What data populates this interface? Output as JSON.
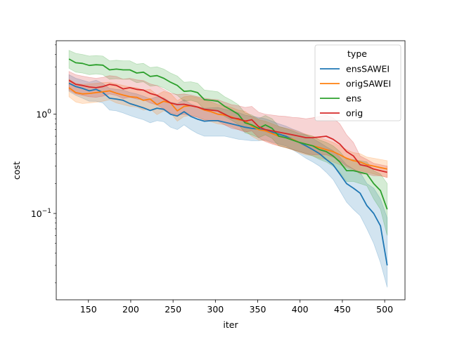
{
  "chart_data": {
    "type": "line",
    "xlabel": "iter",
    "ylabel": "cost",
    "xlim": [
      112,
      524
    ],
    "ylim": [
      0.0135,
      5.5
    ],
    "yscale": "log",
    "grid": false,
    "x_ticks": [
      150,
      200,
      250,
      300,
      350,
      400,
      450,
      500
    ],
    "y_ticks": [
      {
        "value": 0.1,
        "base": "10",
        "exp": "−1"
      },
      {
        "value": 1,
        "base": "10",
        "exp": "0"
      }
    ],
    "legend": {
      "title": "type",
      "placement": "top-right"
    },
    "x": [
      127,
      135,
      143,
      151,
      159,
      167,
      175,
      183,
      191,
      199,
      207,
      215,
      223,
      231,
      239,
      247,
      255,
      263,
      271,
      279,
      287,
      295,
      303,
      311,
      319,
      327,
      335,
      343,
      351,
      359,
      367,
      375,
      383,
      391,
      399,
      407,
      415,
      423,
      431,
      439,
      447,
      455,
      463,
      471,
      479,
      487,
      495,
      503
    ],
    "series": [
      {
        "name": "ensSAWEI",
        "color": "#1f77b4",
        "values": [
          2.05,
          1.9,
          1.82,
          1.72,
          1.78,
          1.66,
          1.45,
          1.42,
          1.38,
          1.28,
          1.22,
          1.16,
          1.09,
          1.15,
          1.12,
          1.0,
          0.96,
          1.06,
          0.95,
          0.89,
          0.85,
          0.86,
          0.86,
          0.83,
          0.8,
          0.77,
          0.74,
          0.72,
          0.71,
          0.7,
          0.66,
          0.63,
          0.6,
          0.56,
          0.52,
          0.48,
          0.44,
          0.4,
          0.35,
          0.31,
          0.25,
          0.2,
          0.18,
          0.16,
          0.12,
          0.1,
          0.075,
          0.03
        ],
        "lower": [
          1.7,
          1.55,
          1.45,
          1.35,
          1.35,
          1.3,
          1.1,
          1.08,
          1.03,
          0.97,
          0.92,
          0.88,
          0.82,
          0.86,
          0.84,
          0.74,
          0.7,
          0.78,
          0.7,
          0.64,
          0.6,
          0.6,
          0.6,
          0.6,
          0.58,
          0.56,
          0.55,
          0.54,
          0.54,
          0.55,
          0.52,
          0.5,
          0.48,
          0.44,
          0.4,
          0.36,
          0.33,
          0.3,
          0.26,
          0.22,
          0.17,
          0.13,
          0.11,
          0.095,
          0.07,
          0.05,
          0.032,
          0.018
        ],
        "upper": [
          2.5,
          2.3,
          2.2,
          2.1,
          2.2,
          2.05,
          1.82,
          1.78,
          1.75,
          1.66,
          1.6,
          1.52,
          1.43,
          1.5,
          1.46,
          1.32,
          1.28,
          1.4,
          1.27,
          1.2,
          1.15,
          1.16,
          1.17,
          1.12,
          1.08,
          1.04,
          0.98,
          0.95,
          0.93,
          0.9,
          0.85,
          0.8,
          0.76,
          0.71,
          0.67,
          0.62,
          0.57,
          0.52,
          0.47,
          0.43,
          0.37,
          0.31,
          0.28,
          0.26,
          0.2,
          0.18,
          0.14,
          0.09
        ]
      },
      {
        "name": "origSAWEI",
        "color": "#ff7f0e",
        "values": [
          1.85,
          1.65,
          1.6,
          1.62,
          1.65,
          1.68,
          1.72,
          1.63,
          1.56,
          1.5,
          1.48,
          1.38,
          1.42,
          1.25,
          1.35,
          1.3,
          1.08,
          1.2,
          1.22,
          1.18,
          1.1,
          1.06,
          1.0,
          0.98,
          0.94,
          0.88,
          0.86,
          0.76,
          0.7,
          0.68,
          0.64,
          0.6,
          0.58,
          0.56,
          0.52,
          0.5,
          0.48,
          0.46,
          0.44,
          0.42,
          0.39,
          0.36,
          0.34,
          0.33,
          0.31,
          0.3,
          0.29,
          0.28
        ],
        "lower": [
          1.5,
          1.33,
          1.28,
          1.3,
          1.32,
          1.35,
          1.4,
          1.3,
          1.25,
          1.2,
          1.18,
          1.1,
          1.13,
          0.99,
          1.08,
          1.03,
          0.85,
          0.95,
          0.97,
          0.93,
          0.87,
          0.84,
          0.8,
          0.78,
          0.75,
          0.7,
          0.68,
          0.6,
          0.55,
          0.54,
          0.51,
          0.48,
          0.46,
          0.44,
          0.41,
          0.39,
          0.38,
          0.36,
          0.35,
          0.33,
          0.31,
          0.29,
          0.27,
          0.27,
          0.26,
          0.25,
          0.24,
          0.23
        ],
        "upper": [
          2.25,
          2.05,
          2.0,
          2.02,
          2.05,
          2.08,
          2.1,
          2.02,
          1.95,
          1.88,
          1.85,
          1.75,
          1.78,
          1.57,
          1.7,
          1.62,
          1.37,
          1.5,
          1.52,
          1.47,
          1.38,
          1.33,
          1.25,
          1.22,
          1.17,
          1.1,
          1.07,
          0.95,
          0.88,
          0.85,
          0.8,
          0.75,
          0.72,
          0.7,
          0.66,
          0.63,
          0.6,
          0.58,
          0.55,
          0.52,
          0.48,
          0.44,
          0.41,
          0.4,
          0.37,
          0.36,
          0.35,
          0.34
        ]
      },
      {
        "name": "ens",
        "color": "#2ca02c",
        "values": [
          3.6,
          3.3,
          3.25,
          3.1,
          3.15,
          3.12,
          2.8,
          2.85,
          2.8,
          2.8,
          2.6,
          2.65,
          2.4,
          2.45,
          2.3,
          2.1,
          1.95,
          1.7,
          1.72,
          1.65,
          1.4,
          1.38,
          1.35,
          1.2,
          1.1,
          1.0,
          0.82,
          0.78,
          0.72,
          0.78,
          0.72,
          0.6,
          0.58,
          0.55,
          0.52,
          0.5,
          0.48,
          0.44,
          0.42,
          0.38,
          0.33,
          0.27,
          0.27,
          0.26,
          0.25,
          0.2,
          0.17,
          0.11
        ],
        "lower": [
          2.9,
          2.65,
          2.6,
          2.5,
          2.55,
          2.5,
          2.25,
          2.28,
          2.25,
          2.25,
          2.08,
          2.12,
          1.92,
          1.95,
          1.84,
          1.68,
          1.55,
          1.35,
          1.38,
          1.32,
          1.12,
          1.1,
          1.07,
          0.95,
          0.87,
          0.79,
          0.65,
          0.62,
          0.58,
          0.62,
          0.57,
          0.48,
          0.46,
          0.44,
          0.42,
          0.4,
          0.38,
          0.35,
          0.33,
          0.3,
          0.26,
          0.21,
          0.21,
          0.2,
          0.19,
          0.14,
          0.11,
          0.06
        ],
        "upper": [
          4.4,
          4.1,
          4.0,
          3.85,
          3.9,
          3.85,
          3.45,
          3.5,
          3.45,
          3.45,
          3.2,
          3.25,
          2.95,
          3.0,
          2.85,
          2.6,
          2.42,
          2.1,
          2.12,
          2.05,
          1.75,
          1.72,
          1.68,
          1.5,
          1.38,
          1.25,
          1.03,
          0.98,
          0.9,
          0.97,
          0.9,
          0.75,
          0.72,
          0.68,
          0.64,
          0.62,
          0.6,
          0.55,
          0.52,
          0.48,
          0.42,
          0.35,
          0.35,
          0.34,
          0.33,
          0.27,
          0.25,
          0.2
        ]
      },
      {
        "name": "orig",
        "color": "#d62728",
        "values": [
          2.2,
          2.0,
          1.95,
          1.88,
          1.85,
          1.9,
          2.0,
          1.95,
          1.8,
          1.85,
          1.78,
          1.75,
          1.62,
          1.55,
          1.42,
          1.3,
          1.25,
          1.26,
          1.22,
          1.18,
          1.12,
          1.1,
          1.08,
          1.0,
          0.92,
          0.9,
          0.85,
          0.88,
          0.75,
          0.7,
          0.68,
          0.66,
          0.64,
          0.62,
          0.6,
          0.58,
          0.58,
          0.59,
          0.6,
          0.56,
          0.5,
          0.42,
          0.38,
          0.31,
          0.3,
          0.28,
          0.27,
          0.26
        ],
        "lower": [
          1.75,
          1.6,
          1.55,
          1.5,
          1.48,
          1.52,
          1.6,
          1.55,
          1.44,
          1.48,
          1.42,
          1.4,
          1.3,
          1.24,
          1.13,
          1.03,
          0.99,
          1.0,
          0.97,
          0.93,
          0.88,
          0.86,
          0.85,
          0.78,
          0.72,
          0.7,
          0.66,
          0.68,
          0.58,
          0.53,
          0.5,
          0.48,
          0.46,
          0.44,
          0.42,
          0.4,
          0.39,
          0.39,
          0.39,
          0.37,
          0.34,
          0.3,
          0.28,
          0.25,
          0.25,
          0.24,
          0.24,
          0.23
        ],
        "upper": [
          2.7,
          2.5,
          2.42,
          2.35,
          2.3,
          2.35,
          2.45,
          2.4,
          2.25,
          2.3,
          2.22,
          2.18,
          2.02,
          1.94,
          1.78,
          1.63,
          1.58,
          1.6,
          1.56,
          1.5,
          1.45,
          1.42,
          1.4,
          1.32,
          1.25,
          1.22,
          1.17,
          1.2,
          1.05,
          1.0,
          0.98,
          0.96,
          0.95,
          0.93,
          0.92,
          0.9,
          0.92,
          0.95,
          0.98,
          0.92,
          0.8,
          0.62,
          0.52,
          0.38,
          0.35,
          0.32,
          0.31,
          0.3
        ]
      }
    ]
  }
}
